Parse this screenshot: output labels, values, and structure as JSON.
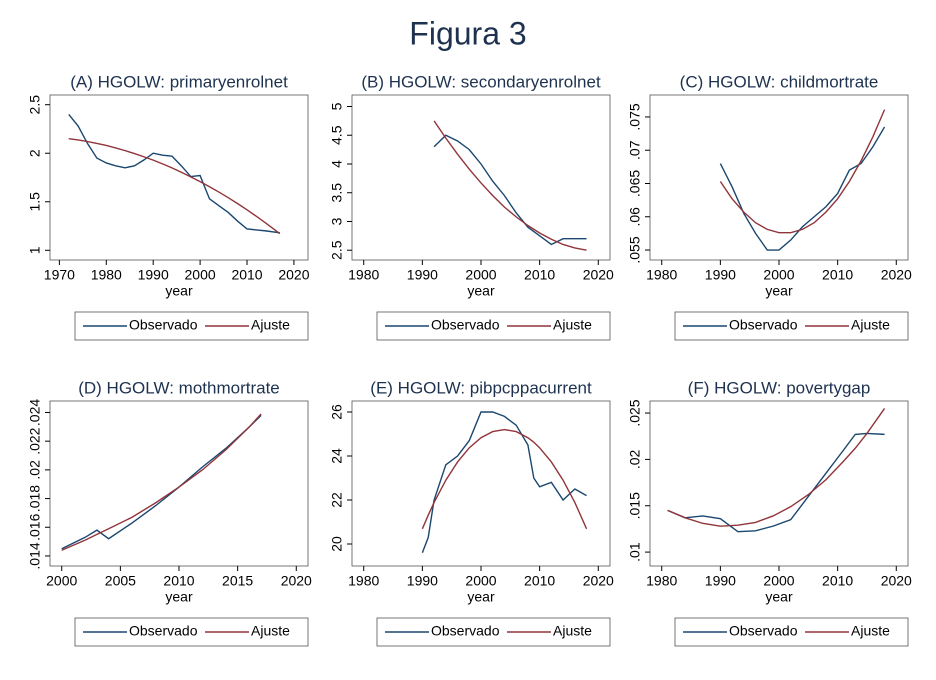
{
  "title": "Figura 3",
  "chart_data": [
    {
      "type": "line",
      "title": "(A) HGOLW: primaryenrolnet",
      "xlabel": "year",
      "x": [
        1972,
        1974,
        1976,
        1978,
        1980,
        1982,
        1984,
        1986,
        1988,
        1990,
        1992,
        1994,
        1996,
        1998,
        2000,
        2002,
        2004,
        2006,
        2008,
        2010,
        2012,
        2014,
        2017
      ],
      "series": [
        {
          "name": "Observado",
          "color": "#1a476f",
          "values": [
            2.4,
            2.28,
            2.1,
            1.95,
            1.9,
            1.87,
            1.85,
            1.87,
            1.93,
            2.0,
            1.98,
            1.97,
            1.87,
            1.76,
            1.77,
            1.53,
            1.46,
            1.39,
            1.3,
            1.22,
            1.21,
            1.2,
            1.18
          ]
        },
        {
          "name": "Ajuste",
          "color": "#90353b",
          "values": [
            2.15,
            2.137,
            2.12,
            2.101,
            2.08,
            2.055,
            2.027,
            1.997,
            1.964,
            1.929,
            1.89,
            1.849,
            1.804,
            1.757,
            1.707,
            1.655,
            1.6,
            1.542,
            1.481,
            1.417,
            1.35,
            1.281,
            1.171
          ]
        }
      ],
      "xlim": [
        1968,
        2023
      ],
      "xticks": [
        1970,
        1980,
        1990,
        2000,
        2010,
        2020
      ],
      "ylim": [
        0.9,
        2.6
      ],
      "yticks": [
        1,
        1.5,
        2,
        2.5
      ]
    },
    {
      "type": "line",
      "title": "(B) HGOLW: secondaryenrolnet",
      "xlabel": "year",
      "x": [
        1992,
        1994,
        1996,
        1998,
        2000,
        2002,
        2004,
        2006,
        2008,
        2010,
        2012,
        2014,
        2016,
        2018
      ],
      "series": [
        {
          "name": "Observado",
          "color": "#1a476f",
          "values": [
            4.3,
            4.5,
            4.4,
            4.25,
            4.0,
            3.7,
            3.45,
            3.15,
            2.9,
            2.75,
            2.6,
            2.7,
            2.7,
            2.7
          ]
        },
        {
          "name": "Ajuste",
          "color": "#90353b",
          "values": [
            4.75,
            4.45,
            4.17,
            3.91,
            3.67,
            3.45,
            3.25,
            3.08,
            2.93,
            2.8,
            2.69,
            2.6,
            2.54,
            2.5
          ]
        }
      ],
      "xlim": [
        1978,
        2022
      ],
      "xticks": [
        1980,
        1990,
        2000,
        2010,
        2020
      ],
      "ylim": [
        2.33,
        5.2
      ],
      "yticks": [
        2.5,
        3,
        3.5,
        4,
        4.5,
        5
      ]
    },
    {
      "type": "line",
      "title": "(C) HGOLW: childmortrate",
      "xlabel": "year",
      "x": [
        1990,
        1992,
        1994,
        1996,
        1998,
        2000,
        2002,
        2004,
        2006,
        2008,
        2010,
        2012,
        2014,
        2016,
        2018
      ],
      "series": [
        {
          "name": "Observado",
          "color": "#1a476f",
          "values": [
            0.068,
            0.0645,
            0.0605,
            0.0575,
            0.055,
            0.055,
            0.0565,
            0.0585,
            0.06,
            0.0615,
            0.0635,
            0.067,
            0.068,
            0.0705,
            0.0735
          ]
        },
        {
          "name": "Ajuste",
          "color": "#90353b",
          "values": [
            0.0653,
            0.0627,
            0.0607,
            0.0591,
            0.0581,
            0.0576,
            0.0576,
            0.0581,
            0.0591,
            0.0607,
            0.0627,
            0.0653,
            0.0684,
            0.072,
            0.0761
          ]
        }
      ],
      "xlim": [
        1978,
        2022
      ],
      "xticks": [
        1980,
        1990,
        2000,
        2010,
        2020
      ],
      "ylim": [
        0.0535,
        0.0783
      ],
      "yticks": [
        {
          "value": 0.055,
          "label": ".055"
        },
        {
          "value": 0.06,
          "label": ".06"
        },
        {
          "value": 0.065,
          "label": ".065"
        },
        {
          "value": 0.07,
          "label": ".07"
        },
        {
          "value": 0.075,
          "label": ".075"
        }
      ]
    },
    {
      "type": "line",
      "title": "(D) HGOLW: mothmortrate",
      "xlabel": "year",
      "x": [
        2000,
        2002,
        2003,
        2004,
        2006,
        2008,
        2010,
        2012,
        2014,
        2016,
        2017
      ],
      "series": [
        {
          "name": "Observado",
          "color": "#1a476f",
          "values": [
            0.0145,
            0.0153,
            0.0158,
            0.0152,
            0.0163,
            0.0175,
            0.0188,
            0.0202,
            0.0215,
            0.023,
            0.0238
          ]
        },
        {
          "name": "Ajuste",
          "color": "#90353b",
          "values": [
            0.0144,
            0.0151,
            0.0155,
            0.0159,
            0.0167,
            0.0177,
            0.0188,
            0.02,
            0.0214,
            0.023,
            0.0239
          ]
        }
      ],
      "xlim": [
        1999,
        2021
      ],
      "xticks": [
        2000,
        2005,
        2010,
        2015,
        2020
      ],
      "ylim": [
        0.0133,
        0.0248
      ],
      "yticks": [
        {
          "value": 0.014,
          "label": ".014"
        },
        {
          "value": 0.016,
          "label": ".016"
        },
        {
          "value": 0.018,
          "label": ".018"
        },
        {
          "value": 0.02,
          "label": ".02"
        },
        {
          "value": 0.022,
          "label": ".022"
        },
        {
          "value": 0.024,
          "label": ".024"
        }
      ]
    },
    {
      "type": "line",
      "title": "(E) HGOLW: pibpcppacurrent",
      "xlabel": "year",
      "x": [
        1990,
        1991,
        1992,
        1994,
        1996,
        1998,
        2000,
        2002,
        2004,
        2006,
        2008,
        2009,
        2010,
        2012,
        2014,
        2016,
        2018
      ],
      "series": [
        {
          "name": "Observado",
          "color": "#1a476f",
          "values": [
            19.6,
            20.3,
            22.0,
            23.6,
            24.0,
            24.7,
            26.0,
            26.0,
            25.8,
            25.4,
            24.5,
            23.0,
            22.6,
            22.8,
            22.0,
            22.5,
            22.2
          ]
        },
        {
          "name": "Ajuste",
          "color": "#90353b",
          "values": [
            20.69,
            21.31,
            21.89,
            22.9,
            23.73,
            24.37,
            24.83,
            25.11,
            25.2,
            25.11,
            24.83,
            24.63,
            24.37,
            23.73,
            22.9,
            21.89,
            20.69
          ]
        }
      ],
      "xlim": [
        1978,
        2022
      ],
      "xticks": [
        1980,
        1990,
        2000,
        2010,
        2020
      ],
      "ylim": [
        19,
        26.5
      ],
      "yticks": [
        20,
        22,
        24,
        26
      ]
    },
    {
      "type": "line",
      "title": "(F) HGOLW: povertygap",
      "xlabel": "year",
      "x": [
        1981,
        1984,
        1987,
        1990,
        1993,
        1996,
        1999,
        2002,
        2005,
        2008,
        2011,
        2013,
        2015,
        2018
      ],
      "series": [
        {
          "name": "Observado",
          "color": "#1a476f",
          "values": [
            0.0145,
            0.0137,
            0.0139,
            0.0136,
            0.0122,
            0.0123,
            0.0128,
            0.0135,
            0.016,
            0.0185,
            0.021,
            0.0227,
            0.0228,
            0.0227
          ]
        },
        {
          "name": "Ajuste",
          "color": "#90353b",
          "values": [
            0.0145,
            0.0137,
            0.0131,
            0.0128,
            0.0129,
            0.0132,
            0.0139,
            0.0149,
            0.0162,
            0.0178,
            0.0198,
            0.0212,
            0.0228,
            0.0255
          ]
        }
      ],
      "xlim": [
        1978,
        2022
      ],
      "xticks": [
        1980,
        1990,
        2000,
        2010,
        2020
      ],
      "ylim": [
        0.0085,
        0.0263
      ],
      "yticks": [
        {
          "value": 0.01,
          "label": ".01"
        },
        {
          "value": 0.015,
          "label": ".015"
        },
        {
          "value": 0.02,
          "label": ".02"
        },
        {
          "value": 0.025,
          "label": ".025"
        }
      ]
    }
  ]
}
